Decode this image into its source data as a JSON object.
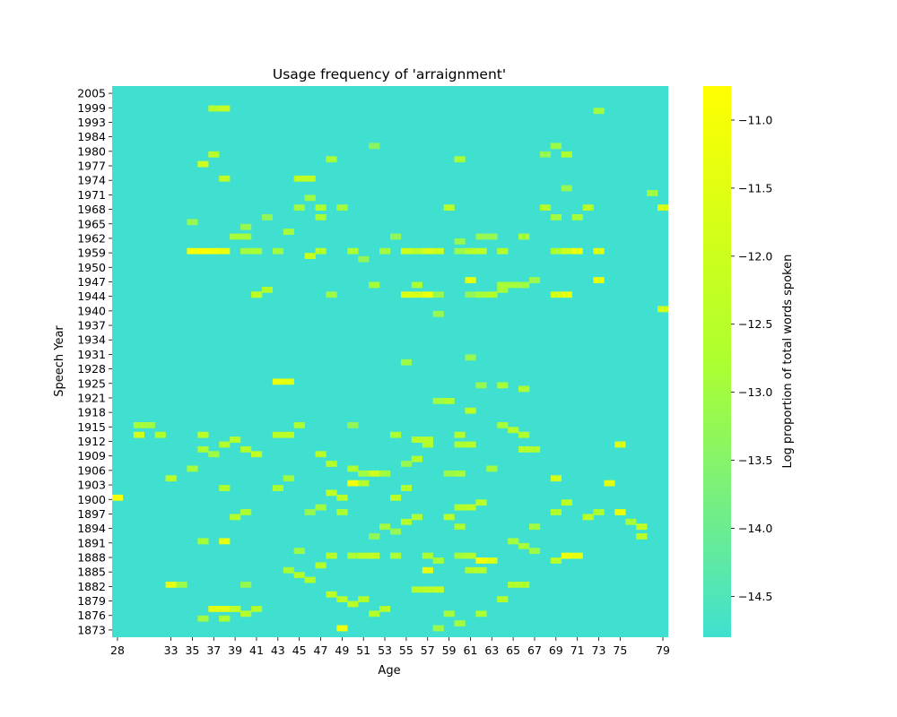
{
  "chart_data": {
    "type": "heatmap",
    "title": "Usage frequency of 'arraignment'",
    "xlabel": "Age",
    "ylabel": "Speech Year",
    "colorbar_label": "Log proportion of total words spoken",
    "x_range": [
      28,
      79
    ],
    "x_tick_labels": [
      "28",
      "33",
      "35",
      "37",
      "39",
      "41",
      "43",
      "45",
      "47",
      "49",
      "51",
      "53",
      "55",
      "57",
      "59",
      "61",
      "63",
      "65",
      "67",
      "69",
      "71",
      "73",
      "75",
      "79"
    ],
    "y_tick_labels": [
      "2005",
      "1999",
      "1993",
      "1984",
      "1980",
      "1977",
      "1974",
      "1971",
      "1968",
      "1965",
      "1962",
      "1959",
      "1950",
      "1947",
      "1944",
      "1940",
      "1937",
      "1934",
      "1931",
      "1928",
      "1925",
      "1921",
      "1918",
      "1915",
      "1912",
      "1909",
      "1906",
      "1903",
      "1900",
      "1897",
      "1894",
      "1891",
      "1888",
      "1885",
      "1882",
      "1879",
      "1876",
      "1873"
    ],
    "colorbar_range": [
      -14.8,
      -10.75
    ],
    "colorbar_ticks": [
      "−11.0",
      "−11.5",
      "−12.0",
      "−12.5",
      "−13.0",
      "−13.5",
      "−14.0",
      "−14.5"
    ],
    "colorbar_tick_values": [
      -11.0,
      -11.5,
      -12.0,
      -12.5,
      -13.0,
      -13.5,
      -14.0,
      -14.5
    ],
    "colors": {
      "min": "#40e0d0",
      "mid": "#adff2f",
      "max": "#ffff00"
    },
    "background_value": -14.8,
    "cells": [
      [
        35,
        1959,
        -11.0
      ],
      [
        36,
        1959,
        -10.8
      ],
      [
        37,
        1959,
        -11.0
      ],
      [
        38,
        1959,
        -11.3
      ],
      [
        41,
        1944,
        -11.1
      ],
      [
        43,
        1925,
        -11.3
      ],
      [
        44,
        1925,
        -11.5
      ],
      [
        55,
        1944,
        -11.6
      ],
      [
        56,
        1944,
        -11.7
      ],
      [
        57,
        1944,
        -11.2
      ],
      [
        70,
        1944,
        -11.4
      ],
      [
        69,
        1944,
        -11.8
      ],
      [
        61,
        1947,
        -11.4
      ],
      [
        73,
        1947,
        -11.4
      ],
      [
        55,
        1959,
        -12.0
      ],
      [
        56,
        1959,
        -12.4
      ],
      [
        57,
        1959,
        -11.7
      ],
      [
        58,
        1959,
        -12.0
      ],
      [
        61,
        1959,
        -12.5
      ],
      [
        62,
        1959,
        -12.3
      ],
      [
        70,
        1959,
        -11.9
      ],
      [
        71,
        1959,
        -11.3
      ],
      [
        73,
        1959,
        -11.6
      ],
      [
        28,
        1900,
        -11.0
      ],
      [
        50,
        1903,
        -11.1
      ],
      [
        49,
        1873,
        -11.2
      ],
      [
        33,
        1882,
        -11.4
      ],
      [
        62,
        1887,
        -11.0
      ],
      [
        63,
        1887,
        -11.6
      ],
      [
        70,
        1888,
        -11.2
      ],
      [
        71,
        1888,
        -11.4
      ],
      [
        57,
        1885,
        -11.4
      ],
      [
        38,
        1891,
        -11.4
      ],
      [
        37,
        1877,
        -11.5
      ],
      [
        38,
        1877,
        -11.6
      ],
      [
        39,
        1877,
        -11.3
      ],
      [
        45,
        1974,
        -12.3
      ],
      [
        46,
        1974,
        -12.4
      ],
      [
        47,
        1968,
        -12.8
      ],
      [
        79,
        1968,
        -11.7
      ],
      [
        79,
        1940,
        -11.9
      ],
      [
        75,
        1897,
        -11.2
      ],
      [
        74,
        1903,
        -11.5
      ],
      [
        69,
        1904,
        -11.8
      ],
      [
        75,
        1911,
        -11.7
      ],
      [
        30,
        1913,
        -11.8
      ],
      [
        52,
        1888,
        -12.2
      ],
      [
        51,
        1888,
        -12.4
      ],
      [
        50,
        1888,
        -12.8
      ],
      [
        48,
        1901,
        -12.3
      ],
      [
        49,
        1900,
        -12.5
      ],
      [
        55,
        1902,
        -12.6
      ],
      [
        64,
        1915,
        -12.9
      ],
      [
        65,
        1914,
        -12.6
      ],
      [
        66,
        1913,
        -12.7
      ],
      [
        37,
        1998,
        -12.6
      ],
      [
        38,
        1998,
        -12.2
      ],
      [
        36,
        1977,
        -12.0
      ],
      [
        37,
        1979,
        -12.5
      ],
      [
        38,
        1974,
        -12.4
      ],
      [
        46,
        1956,
        -12.1
      ],
      [
        59,
        1968,
        -12.5
      ],
      [
        68,
        1968,
        -12.6
      ],
      [
        72,
        1968,
        -12.5
      ],
      [
        43,
        1913,
        -12.5
      ],
      [
        44,
        1913,
        -12.4
      ],
      [
        45,
        1915,
        -12.8
      ],
      [
        52,
        1905,
        -12.0
      ],
      [
        54,
        1900,
        -12.4
      ],
      [
        56,
        1908,
        -12.3
      ],
      [
        59,
        1896,
        -12.5
      ],
      [
        60,
        1894,
        -12.8
      ],
      [
        56,
        1881,
        -12.6
      ],
      [
        57,
        1881,
        -12.4
      ],
      [
        58,
        1881,
        -12.2
      ],
      [
        48,
        1880,
        -12.4
      ],
      [
        49,
        1879,
        -12.6
      ],
      [
        50,
        1878,
        -12.5
      ],
      [
        51,
        1879,
        -12.7
      ],
      [
        53,
        1877,
        -12.6
      ],
      [
        52,
        1876,
        -12.6
      ],
      [
        44,
        1885,
        -12.9
      ],
      [
        45,
        1884,
        -12.7
      ],
      [
        46,
        1883,
        -12.7
      ],
      [
        47,
        1886,
        -12.6
      ],
      [
        48,
        1888,
        -12.5
      ],
      [
        57,
        1888,
        -12.8
      ],
      [
        58,
        1887,
        -12.9
      ],
      [
        61,
        1885,
        -12.7
      ],
      [
        62,
        1885,
        -12.6
      ],
      [
        65,
        1882,
        -12.7
      ],
      [
        66,
        1882,
        -12.7
      ],
      [
        67,
        1894,
        -13.0
      ],
      [
        77,
        1894,
        -12.3
      ],
      [
        77,
        1892,
        -12.5
      ],
      [
        60,
        1911,
        -12.8
      ],
      [
        61,
        1911,
        -12.6
      ],
      [
        61,
        1918,
        -12.4
      ],
      [
        52,
        1946,
        -12.9
      ],
      [
        56,
        1946,
        -12.8
      ],
      [
        64,
        1946,
        -12.9
      ],
      [
        65,
        1946,
        -12.9
      ],
      [
        66,
        1946,
        -13.0
      ],
      [
        67,
        1947,
        -13.1
      ],
      [
        58,
        1939,
        -13.2
      ],
      [
        69,
        1966,
        -13.0
      ],
      [
        48,
        1978,
        -12.9
      ],
      [
        66,
        1962,
        -12.9
      ],
      [
        51,
        1954,
        -13.3
      ],
      [
        44,
        1963,
        -12.9
      ],
      [
        60,
        1961,
        -13.2
      ],
      [
        54,
        1962,
        -13.3
      ],
      [
        62,
        1962,
        -13.2
      ],
      [
        63,
        1962,
        -13.2
      ],
      [
        40,
        1959,
        -13.0
      ],
      [
        41,
        1959,
        -12.9
      ],
      [
        43,
        1959,
        -13.0
      ],
      [
        47,
        1959,
        -12.6
      ],
      [
        50,
        1959,
        -12.8
      ],
      [
        53,
        1959,
        -13.0
      ],
      [
        60,
        1959,
        -13.1
      ],
      [
        64,
        1959,
        -12.6
      ],
      [
        69,
        1959,
        -12.8
      ],
      [
        41,
        1944,
        -12.4
      ],
      [
        42,
        1945,
        -12.7
      ],
      [
        48,
        1944,
        -13.1
      ],
      [
        58,
        1944,
        -13.2
      ],
      [
        61,
        1944,
        -13.3
      ],
      [
        62,
        1944,
        -12.9
      ],
      [
        63,
        1944,
        -12.7
      ],
      [
        64,
        1945,
        -12.9
      ],
      [
        58,
        1920,
        -13.0
      ],
      [
        59,
        1920,
        -12.8
      ],
      [
        62,
        1924,
        -13.2
      ],
      [
        64,
        1924,
        -12.9
      ],
      [
        66,
        1923,
        -12.8
      ],
      [
        61,
        1930,
        -13.2
      ],
      [
        55,
        1929,
        -13.1
      ],
      [
        50,
        1915,
        -13.3
      ],
      [
        30,
        1915,
        -12.9
      ],
      [
        31,
        1915,
        -13.0
      ],
      [
        32,
        1913,
        -12.7
      ],
      [
        36,
        1913,
        -12.4
      ],
      [
        36,
        1910,
        -12.8
      ],
      [
        38,
        1911,
        -12.6
      ],
      [
        39,
        1912,
        -12.5
      ],
      [
        40,
        1910,
        -12.6
      ],
      [
        41,
        1909,
        -12.3
      ],
      [
        33,
        1904,
        -12.5
      ],
      [
        35,
        1906,
        -12.9
      ],
      [
        37,
        1909,
        -13.0
      ],
      [
        38,
        1902,
        -12.7
      ],
      [
        39,
        1896,
        -12.6
      ],
      [
        40,
        1897,
        -12.8
      ],
      [
        43,
        1902,
        -12.8
      ],
      [
        44,
        1904,
        -13.0
      ],
      [
        46,
        1897,
        -13.2
      ],
      [
        49,
        1897,
        -12.8
      ],
      [
        47,
        1898,
        -13.0
      ],
      [
        55,
        1895,
        -12.6
      ],
      [
        56,
        1896,
        -12.8
      ],
      [
        60,
        1898,
        -12.6
      ],
      [
        61,
        1898,
        -12.4
      ],
      [
        62,
        1899,
        -12.5
      ],
      [
        65,
        1891,
        -12.9
      ],
      [
        66,
        1890,
        -12.9
      ],
      [
        69,
        1897,
        -12.7
      ],
      [
        69,
        1887,
        -12.5
      ],
      [
        70,
        1899,
        -12.4
      ],
      [
        72,
        1896,
        -12.5
      ],
      [
        73,
        1897,
        -12.8
      ],
      [
        76,
        1895,
        -12.9
      ],
      [
        64,
        1879,
        -12.6
      ],
      [
        59,
        1876,
        -12.9
      ],
      [
        62,
        1876,
        -12.8
      ],
      [
        36,
        1891,
        -12.9
      ],
      [
        45,
        1889,
        -13.1
      ],
      [
        54,
        1893,
        -13.2
      ],
      [
        53,
        1894,
        -13.0
      ],
      [
        52,
        1892,
        -13.3
      ],
      [
        54,
        1888,
        -12.8
      ],
      [
        60,
        1888,
        -12.9
      ],
      [
        61,
        1888,
        -12.7
      ],
      [
        67,
        1889,
        -13.1
      ],
      [
        39,
        1877,
        -12.4
      ],
      [
        40,
        1876,
        -12.6
      ],
      [
        41,
        1877,
        -12.7
      ],
      [
        36,
        1875,
        -13.0
      ],
      [
        38,
        1875,
        -12.8
      ],
      [
        34,
        1882,
        -13.1
      ],
      [
        40,
        1882,
        -13.2
      ],
      [
        58,
        1873,
        -13.1
      ],
      [
        60,
        1874,
        -13.0
      ],
      [
        56,
        1908,
        -12.7
      ],
      [
        51,
        1903,
        -12.6
      ],
      [
        50,
        1906,
        -12.8
      ],
      [
        51,
        1905,
        -13.0
      ],
      [
        55,
        1907,
        -13.2
      ],
      [
        53,
        1905,
        -13.0
      ],
      [
        59,
        1905,
        -13.1
      ],
      [
        60,
        1905,
        -12.9
      ],
      [
        63,
        1906,
        -13.0
      ],
      [
        66,
        1910,
        -12.5
      ],
      [
        67,
        1910,
        -12.7
      ],
      [
        48,
        1907,
        -12.6
      ],
      [
        47,
        1909,
        -12.5
      ],
      [
        57,
        1911,
        -12.7
      ],
      [
        60,
        1913,
        -12.6
      ],
      [
        56,
        1912,
        -12.5
      ],
      [
        57,
        1912,
        -12.6
      ],
      [
        54,
        1913,
        -12.8
      ],
      [
        46,
        1970,
        -13.1
      ],
      [
        47,
        1966,
        -12.9
      ],
      [
        45,
        1968,
        -13.0
      ],
      [
        49,
        1968,
        -13.0
      ],
      [
        42,
        1966,
        -13.3
      ],
      [
        40,
        1962,
        -12.9
      ],
      [
        39,
        1962,
        -12.9
      ],
      [
        40,
        1964,
        -13.2
      ],
      [
        35,
        1965,
        -13.2
      ],
      [
        71,
        1966,
        -12.9
      ],
      [
        70,
        1979,
        -12.8
      ],
      [
        69,
        1981,
        -13.1
      ],
      [
        68,
        1979,
        -13.2
      ],
      [
        60,
        1978,
        -12.9
      ],
      [
        52,
        1981,
        -13.4
      ],
      [
        73,
        1997,
        -13.0
      ],
      [
        78,
        1971,
        -13.0
      ],
      [
        70,
        1972,
        -13.2
      ]
    ]
  }
}
